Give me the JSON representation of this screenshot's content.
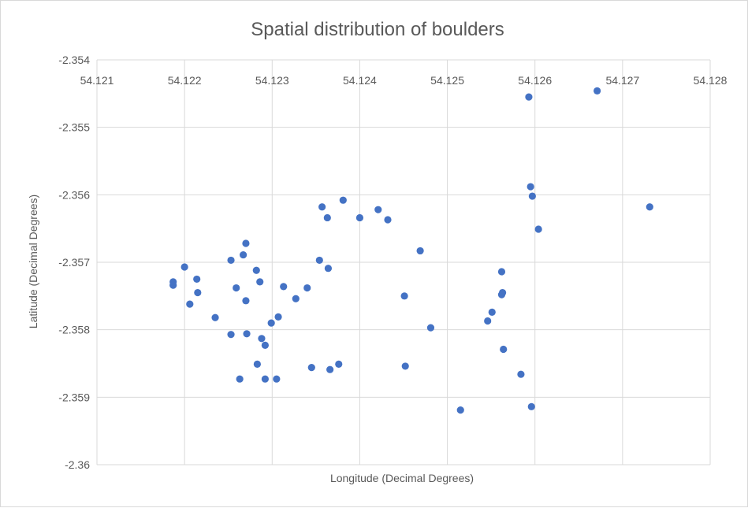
{
  "chart_data": {
    "type": "scatter",
    "title": "Spatial distribution of boulders",
    "xlabel": "Longitude (Decimal Degrees)",
    "ylabel": "Latitude (Decimal Degrees)",
    "xlim": [
      54.121,
      54.128
    ],
    "ylim": [
      -2.36,
      -2.354
    ],
    "x_ticks": [
      "54.121",
      "54.122",
      "54.123",
      "54.124",
      "54.125",
      "54.126",
      "54.127",
      "54.128"
    ],
    "y_ticks": [
      "-2.354",
      "-2.355",
      "-2.356",
      "-2.357",
      "-2.358",
      "-2.359",
      "-2.36"
    ],
    "grid": true,
    "legend": "none",
    "color": "#4472c4",
    "series": [
      {
        "points": [
          [
            54.12593,
            -2.35455
          ],
          [
            54.12671,
            -2.35446
          ],
          [
            54.12595,
            -2.35588
          ],
          [
            54.12597,
            -2.35602
          ],
          [
            54.12731,
            -2.35618
          ],
          [
            54.12604,
            -2.35651
          ],
          [
            54.12381,
            -2.35608
          ],
          [
            54.12357,
            -2.35618
          ],
          [
            54.12363,
            -2.35634
          ],
          [
            54.124,
            -2.35634
          ],
          [
            54.12421,
            -2.35622
          ],
          [
            54.12432,
            -2.35637
          ],
          [
            54.12469,
            -2.35683
          ],
          [
            54.1227,
            -2.35672
          ],
          [
            54.12253,
            -2.35697
          ],
          [
            54.12267,
            -2.35689
          ],
          [
            54.12282,
            -2.35712
          ],
          [
            54.122,
            -2.35707
          ],
          [
            54.12354,
            -2.35697
          ],
          [
            54.12364,
            -2.35709
          ],
          [
            54.12187,
            -2.35729
          ],
          [
            54.12187,
            -2.35734
          ],
          [
            54.12214,
            -2.35725
          ],
          [
            54.12215,
            -2.35745
          ],
          [
            54.12286,
            -2.35729
          ],
          [
            54.12259,
            -2.35738
          ],
          [
            54.12313,
            -2.35736
          ],
          [
            54.1234,
            -2.35738
          ],
          [
            54.12327,
            -2.35754
          ],
          [
            54.1227,
            -2.35757
          ],
          [
            54.12206,
            -2.35762
          ],
          [
            54.12562,
            -2.35714
          ],
          [
            54.12563,
            -2.35745
          ],
          [
            54.12562,
            -2.35748
          ],
          [
            54.12451,
            -2.3575
          ],
          [
            54.12235,
            -2.35782
          ],
          [
            54.12307,
            -2.35781
          ],
          [
            54.12299,
            -2.3579
          ],
          [
            54.12551,
            -2.35774
          ],
          [
            54.12546,
            -2.35787
          ],
          [
            54.12481,
            -2.35797
          ],
          [
            54.12253,
            -2.35807
          ],
          [
            54.12271,
            -2.35806
          ],
          [
            54.12288,
            -2.35813
          ],
          [
            54.12292,
            -2.35823
          ],
          [
            54.12564,
            -2.35829
          ],
          [
            54.12283,
            -2.35851
          ],
          [
            54.12345,
            -2.35856
          ],
          [
            54.12376,
            -2.35851
          ],
          [
            54.12366,
            -2.35859
          ],
          [
            54.12452,
            -2.35854
          ],
          [
            54.12584,
            -2.35866
          ],
          [
            54.12263,
            -2.35873
          ],
          [
            54.12292,
            -2.35873
          ],
          [
            54.12305,
            -2.35873
          ],
          [
            54.12515,
            -2.35919
          ],
          [
            54.12596,
            -2.35914
          ]
        ]
      }
    ]
  }
}
